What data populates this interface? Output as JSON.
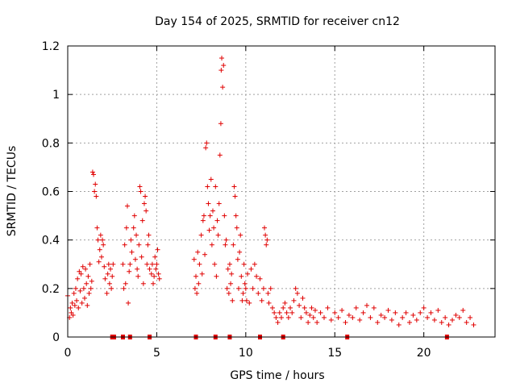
{
  "chart_data": {
    "type": "scatter",
    "title": "Day 154 of 2025, SRMTID for receiver cn12",
    "xlabel": "GPS time / hours",
    "ylabel": "SRMTID / TECUs",
    "xlim": [
      0,
      24
    ],
    "ylim": [
      0,
      1.2
    ],
    "xticks": [
      0,
      5,
      10,
      15,
      20
    ],
    "xtick_labels": [
      "0",
      "5",
      "10",
      "15",
      "20"
    ],
    "yticks": [
      0,
      0.2,
      0.4,
      0.6,
      0.8,
      1.0,
      1.2
    ],
    "ytick_labels": [
      "0",
      "0.2",
      "0.4",
      "0.6",
      "0.8",
      "1",
      "1.2"
    ],
    "grid": true,
    "marker": "+",
    "color": "#e00000",
    "series": [
      {
        "name": "SRMTID",
        "points": [
          [
            0.0,
            0.17
          ],
          [
            0.1,
            0.08
          ],
          [
            0.15,
            0.12
          ],
          [
            0.2,
            0.1
          ],
          [
            0.25,
            0.14
          ],
          [
            0.3,
            0.09
          ],
          [
            0.35,
            0.18
          ],
          [
            0.4,
            0.13
          ],
          [
            0.45,
            0.2
          ],
          [
            0.5,
            0.15
          ],
          [
            0.55,
            0.24
          ],
          [
            0.6,
            0.12
          ],
          [
            0.65,
            0.27
          ],
          [
            0.7,
            0.19
          ],
          [
            0.75,
            0.26
          ],
          [
            0.8,
            0.14
          ],
          [
            0.85,
            0.29
          ],
          [
            0.9,
            0.2
          ],
          [
            0.95,
            0.16
          ],
          [
            1.0,
            0.28
          ],
          [
            1.05,
            0.22
          ],
          [
            1.1,
            0.13
          ],
          [
            1.15,
            0.25
          ],
          [
            1.2,
            0.18
          ],
          [
            1.25,
            0.3
          ],
          [
            1.3,
            0.2
          ],
          [
            1.35,
            0.23
          ],
          [
            1.4,
            0.68
          ],
          [
            1.45,
            0.67
          ],
          [
            1.5,
            0.6
          ],
          [
            1.55,
            0.63
          ],
          [
            1.6,
            0.58
          ],
          [
            1.65,
            0.45
          ],
          [
            1.7,
            0.4
          ],
          [
            1.75,
            0.31
          ],
          [
            1.8,
            0.36
          ],
          [
            1.85,
            0.42
          ],
          [
            1.9,
            0.33
          ],
          [
            1.95,
            0.4
          ],
          [
            2.0,
            0.38
          ],
          [
            2.05,
            0.29
          ],
          [
            2.1,
            0.24
          ],
          [
            2.2,
            0.18
          ],
          [
            2.25,
            0.26
          ],
          [
            2.3,
            0.3
          ],
          [
            2.35,
            0.22
          ],
          [
            2.4,
            0.28
          ],
          [
            2.45,
            0.2
          ],
          [
            2.5,
            0.25
          ],
          [
            2.55,
            0.3
          ],
          [
            3.1,
            0.3
          ],
          [
            3.15,
            0.2
          ],
          [
            3.2,
            0.38
          ],
          [
            3.25,
            0.22
          ],
          [
            3.3,
            0.45
          ],
          [
            3.35,
            0.54
          ],
          [
            3.4,
            0.14
          ],
          [
            3.45,
            0.27
          ],
          [
            3.5,
            0.3
          ],
          [
            3.55,
            0.4
          ],
          [
            3.6,
            0.35
          ],
          [
            3.7,
            0.45
          ],
          [
            3.75,
            0.5
          ],
          [
            3.8,
            0.32
          ],
          [
            3.85,
            0.42
          ],
          [
            3.9,
            0.28
          ],
          [
            3.95,
            0.25
          ],
          [
            4.0,
            0.38
          ],
          [
            4.05,
            0.62
          ],
          [
            4.1,
            0.6
          ],
          [
            4.15,
            0.33
          ],
          [
            4.2,
            0.48
          ],
          [
            4.25,
            0.22
          ],
          [
            4.3,
            0.55
          ],
          [
            4.35,
            0.58
          ],
          [
            4.4,
            0.52
          ],
          [
            4.45,
            0.3
          ],
          [
            4.5,
            0.38
          ],
          [
            4.55,
            0.42
          ],
          [
            4.6,
            0.28
          ],
          [
            4.7,
            0.26
          ],
          [
            4.75,
            0.3
          ],
          [
            4.8,
            0.22
          ],
          [
            4.85,
            0.25
          ],
          [
            4.9,
            0.33
          ],
          [
            4.95,
            0.28
          ],
          [
            5.0,
            0.3
          ],
          [
            5.05,
            0.36
          ],
          [
            5.1,
            0.26
          ],
          [
            5.15,
            0.24
          ],
          [
            7.1,
            0.32
          ],
          [
            7.15,
            0.2
          ],
          [
            7.2,
            0.25
          ],
          [
            7.25,
            0.18
          ],
          [
            7.3,
            0.35
          ],
          [
            7.35,
            0.22
          ],
          [
            7.4,
            0.3
          ],
          [
            7.5,
            0.42
          ],
          [
            7.55,
            0.26
          ],
          [
            7.6,
            0.48
          ],
          [
            7.65,
            0.5
          ],
          [
            7.7,
            0.34
          ],
          [
            7.75,
            0.78
          ],
          [
            7.8,
            0.8
          ],
          [
            7.85,
            0.62
          ],
          [
            7.9,
            0.55
          ],
          [
            7.95,
            0.44
          ],
          [
            8.0,
            0.5
          ],
          [
            8.05,
            0.65
          ],
          [
            8.1,
            0.38
          ],
          [
            8.15,
            0.52
          ],
          [
            8.2,
            0.45
          ],
          [
            8.25,
            0.3
          ],
          [
            8.3,
            0.62
          ],
          [
            8.35,
            0.25
          ],
          [
            8.4,
            0.48
          ],
          [
            8.45,
            0.42
          ],
          [
            8.5,
            0.55
          ],
          [
            8.55,
            0.75
          ],
          [
            8.6,
            0.88
          ],
          [
            8.62,
            1.1
          ],
          [
            8.65,
            1.15
          ],
          [
            8.7,
            1.03
          ],
          [
            8.75,
            1.12
          ],
          [
            8.8,
            0.5
          ],
          [
            8.85,
            0.38
          ],
          [
            8.9,
            0.4
          ],
          [
            8.95,
            0.2
          ],
          [
            9.0,
            0.28
          ],
          [
            9.05,
            0.18
          ],
          [
            9.1,
            0.3
          ],
          [
            9.15,
            0.22
          ],
          [
            9.2,
            0.26
          ],
          [
            9.25,
            0.15
          ],
          [
            9.3,
            0.38
          ],
          [
            9.35,
            0.62
          ],
          [
            9.4,
            0.58
          ],
          [
            9.45,
            0.5
          ],
          [
            9.5,
            0.45
          ],
          [
            9.55,
            0.32
          ],
          [
            9.6,
            0.2
          ],
          [
            9.65,
            0.35
          ],
          [
            9.7,
            0.42
          ],
          [
            9.75,
            0.25
          ],
          [
            9.8,
            0.15
          ],
          [
            9.85,
            0.18
          ],
          [
            9.9,
            0.3
          ],
          [
            9.95,
            0.22
          ],
          [
            10.0,
            0.2
          ],
          [
            10.05,
            0.15
          ],
          [
            10.1,
            0.26
          ],
          [
            10.2,
            0.14
          ],
          [
            10.3,
            0.28
          ],
          [
            10.4,
            0.2
          ],
          [
            10.5,
            0.3
          ],
          [
            10.6,
            0.25
          ],
          [
            10.7,
            0.18
          ],
          [
            10.8,
            0.24
          ],
          [
            10.9,
            0.15
          ],
          [
            11.0,
            0.2
          ],
          [
            11.05,
            0.45
          ],
          [
            11.1,
            0.42
          ],
          [
            11.15,
            0.38
          ],
          [
            11.2,
            0.4
          ],
          [
            11.25,
            0.18
          ],
          [
            11.3,
            0.14
          ],
          [
            11.4,
            0.2
          ],
          [
            11.5,
            0.12
          ],
          [
            11.6,
            0.1
          ],
          [
            11.7,
            0.08
          ],
          [
            11.8,
            0.06
          ],
          [
            11.9,
            0.1
          ],
          [
            12.0,
            0.08
          ],
          [
            12.1,
            0.12
          ],
          [
            12.2,
            0.14
          ],
          [
            12.3,
            0.1
          ],
          [
            12.4,
            0.08
          ],
          [
            12.5,
            0.12
          ],
          [
            12.6,
            0.1
          ],
          [
            12.7,
            0.15
          ],
          [
            12.8,
            0.2
          ],
          [
            12.9,
            0.18
          ],
          [
            13.0,
            0.13
          ],
          [
            13.1,
            0.08
          ],
          [
            13.2,
            0.16
          ],
          [
            13.3,
            0.12
          ],
          [
            13.4,
            0.1
          ],
          [
            13.5,
            0.06
          ],
          [
            13.6,
            0.09
          ],
          [
            13.7,
            0.12
          ],
          [
            13.8,
            0.08
          ],
          [
            13.9,
            0.11
          ],
          [
            14.0,
            0.06
          ],
          [
            14.2,
            0.1
          ],
          [
            14.4,
            0.08
          ],
          [
            14.6,
            0.12
          ],
          [
            14.8,
            0.07
          ],
          [
            15.0,
            0.1
          ],
          [
            15.2,
            0.08
          ],
          [
            15.4,
            0.11
          ],
          [
            15.6,
            0.06
          ],
          [
            15.8,
            0.09
          ],
          [
            16.0,
            0.08
          ],
          [
            16.2,
            0.12
          ],
          [
            16.4,
            0.07
          ],
          [
            16.6,
            0.1
          ],
          [
            16.8,
            0.13
          ],
          [
            17.0,
            0.08
          ],
          [
            17.2,
            0.12
          ],
          [
            17.4,
            0.06
          ],
          [
            17.6,
            0.09
          ],
          [
            17.8,
            0.08
          ],
          [
            18.0,
            0.11
          ],
          [
            18.2,
            0.07
          ],
          [
            18.4,
            0.1
          ],
          [
            18.6,
            0.05
          ],
          [
            18.8,
            0.08
          ],
          [
            19.0,
            0.1
          ],
          [
            19.2,
            0.06
          ],
          [
            19.4,
            0.09
          ],
          [
            19.6,
            0.07
          ],
          [
            19.8,
            0.1
          ],
          [
            20.0,
            0.12
          ],
          [
            20.2,
            0.08
          ],
          [
            20.4,
            0.1
          ],
          [
            20.6,
            0.07
          ],
          [
            20.8,
            0.11
          ],
          [
            21.0,
            0.06
          ],
          [
            21.2,
            0.08
          ],
          [
            21.4,
            0.05
          ],
          [
            21.6,
            0.07
          ],
          [
            21.8,
            0.09
          ],
          [
            22.0,
            0.08
          ],
          [
            22.2,
            0.11
          ],
          [
            22.4,
            0.06
          ],
          [
            22.6,
            0.08
          ],
          [
            22.8,
            0.05
          ]
        ]
      }
    ],
    "baseline_marks_x": [
      2.5,
      2.6,
      3.1,
      3.5,
      4.6,
      7.2,
      8.3,
      9.1,
      10.8,
      12.1,
      15.7,
      21.3
    ]
  }
}
